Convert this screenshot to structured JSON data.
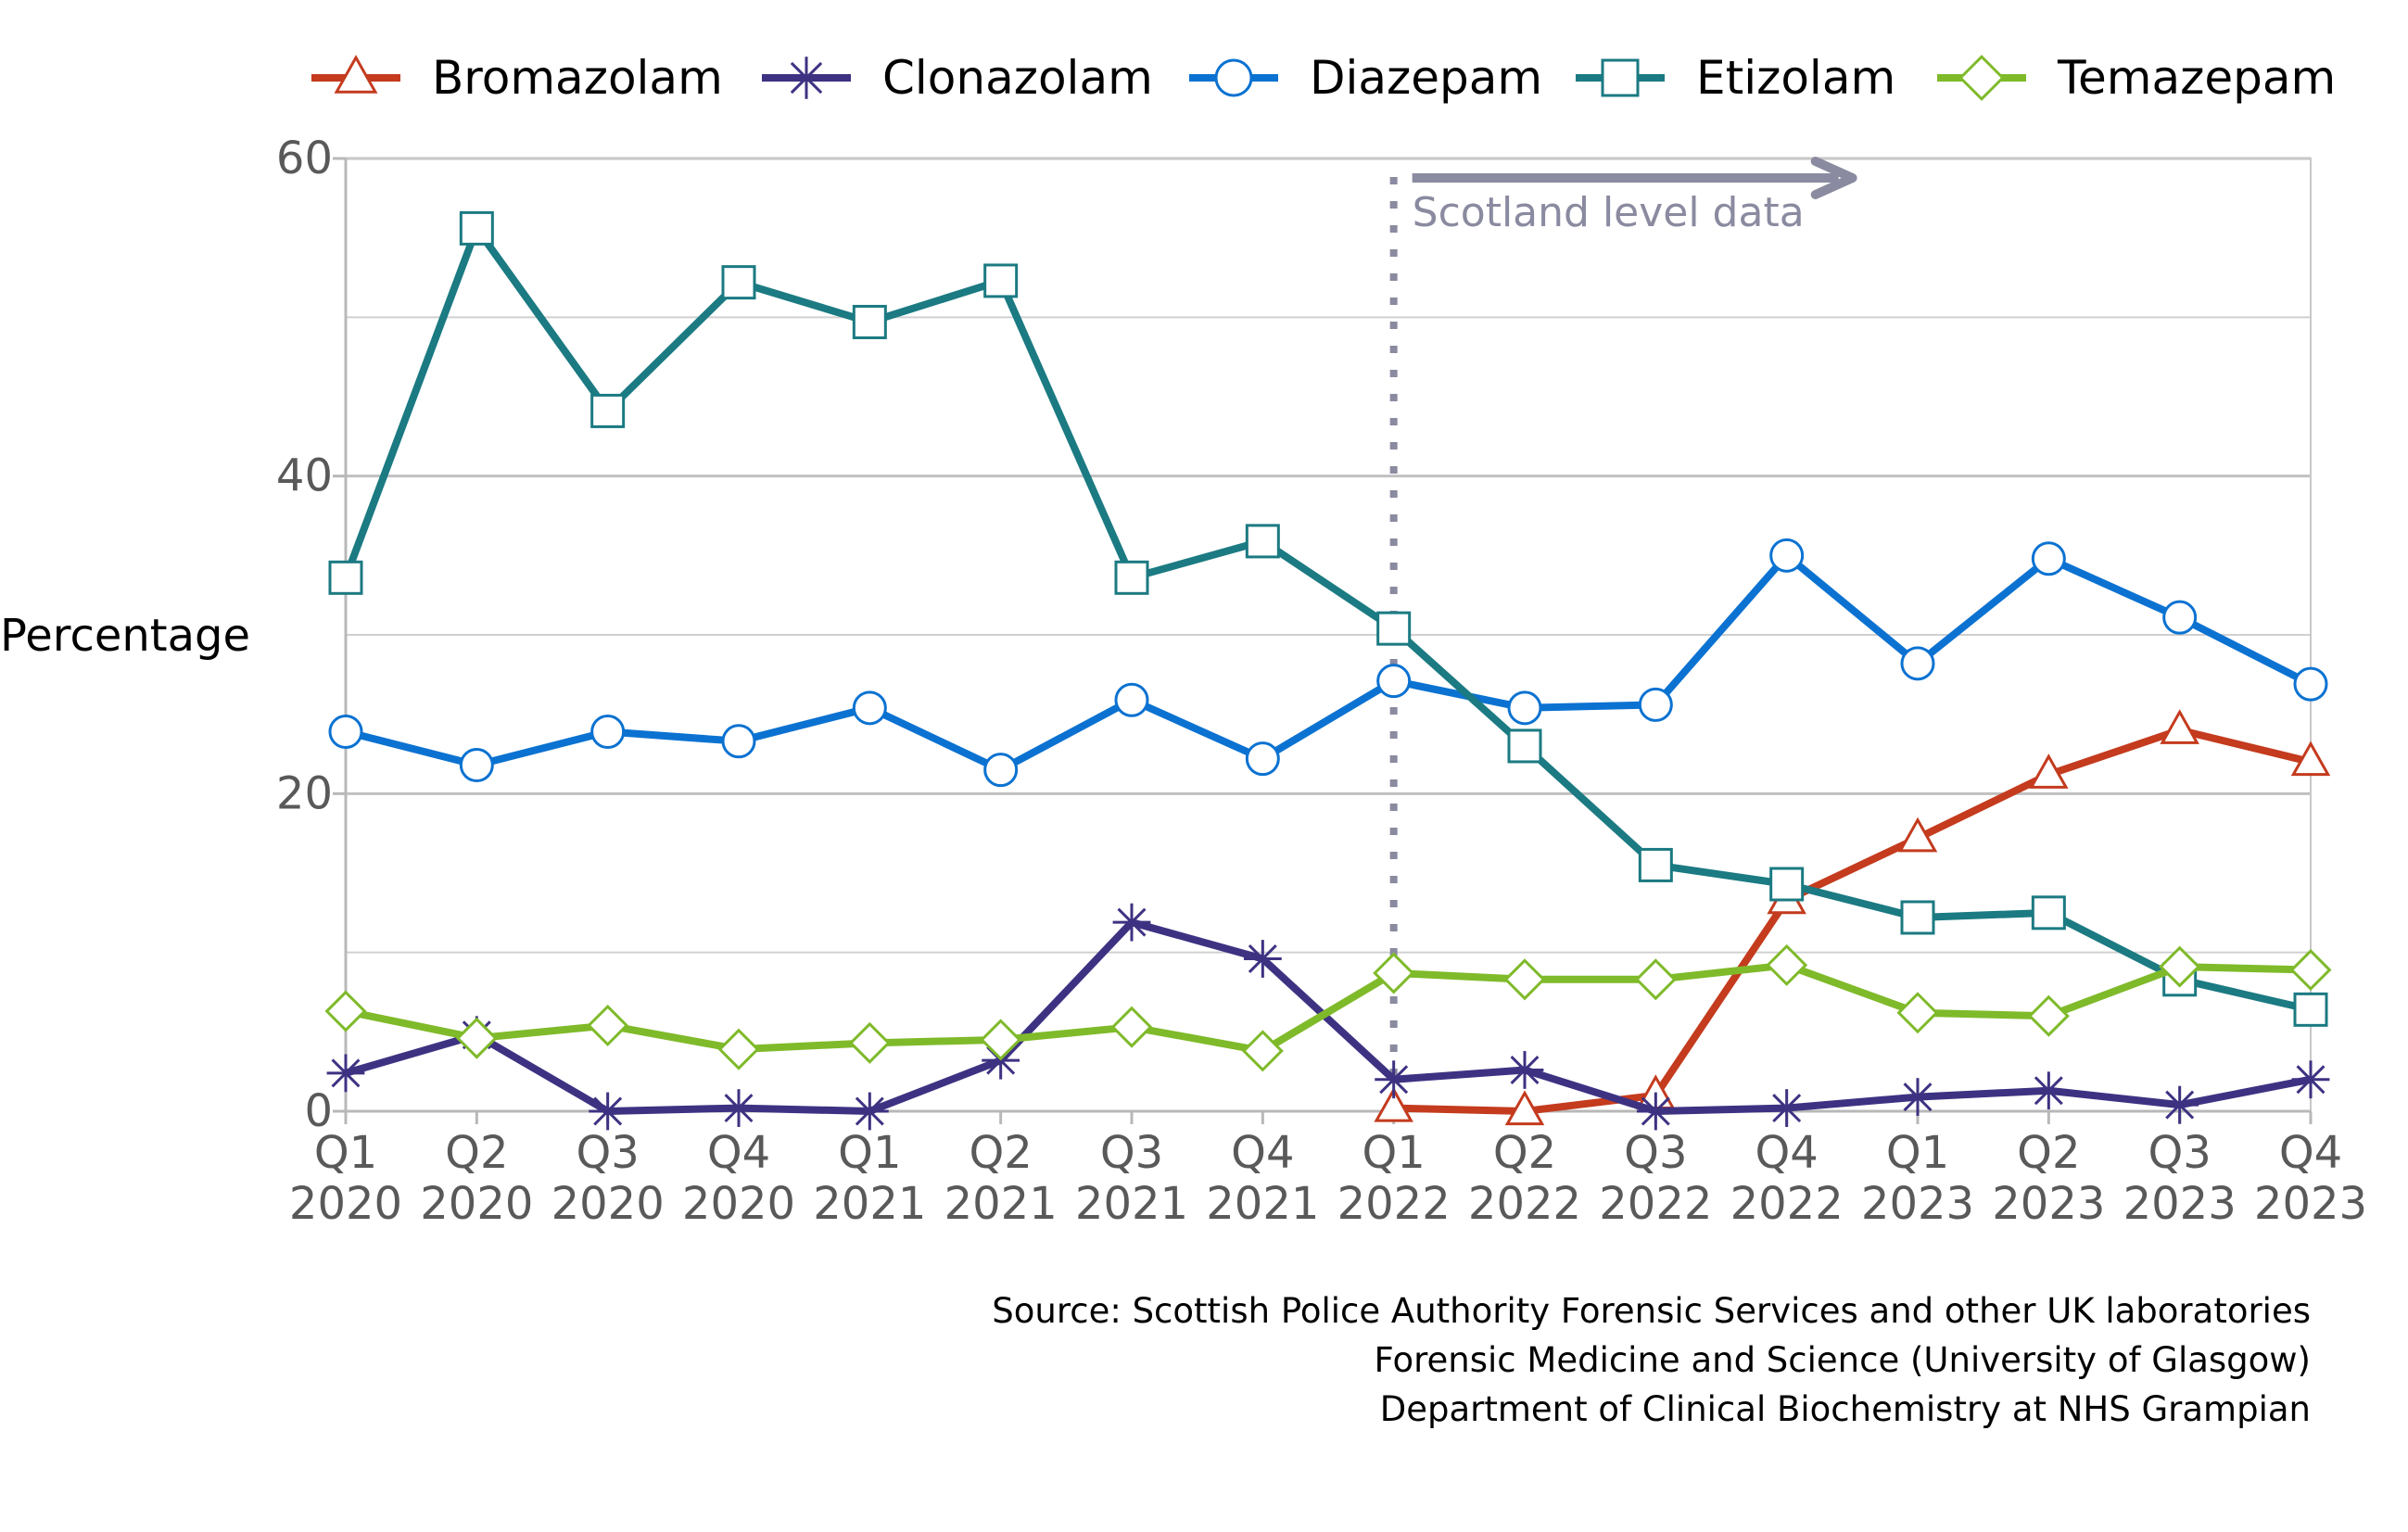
{
  "chart_data": {
    "type": "line",
    "title": "",
    "xlabel": "",
    "ylabel": "Percentage",
    "ylim": [
      0,
      60
    ],
    "yticks": [
      0,
      20,
      40,
      60
    ],
    "ygrid_minor": [
      10,
      30,
      50
    ],
    "grid": true,
    "legend_position": "top",
    "categories": [
      [
        "Q1",
        "2020"
      ],
      [
        "Q2",
        "2020"
      ],
      [
        "Q3",
        "2020"
      ],
      [
        "Q4",
        "2020"
      ],
      [
        "Q1",
        "2021"
      ],
      [
        "Q2",
        "2021"
      ],
      [
        "Q3",
        "2021"
      ],
      [
        "Q4",
        "2021"
      ],
      [
        "Q1",
        "2022"
      ],
      [
        "Q2",
        "2022"
      ],
      [
        "Q3",
        "2022"
      ],
      [
        "Q4",
        "2022"
      ],
      [
        "Q1",
        "2023"
      ],
      [
        "Q2",
        "2023"
      ],
      [
        "Q3",
        "2023"
      ],
      [
        "Q4",
        "2023"
      ]
    ],
    "series": [
      {
        "name": "Bromazolam",
        "color": "#c43b1e",
        "marker": "triangle",
        "values": [
          null,
          null,
          null,
          null,
          null,
          null,
          null,
          null,
          0.2,
          0.0,
          1.0,
          13.3,
          17.2,
          21.2,
          24.0,
          22.0
        ]
      },
      {
        "name": "Clonazolam",
        "color": "#3d3282",
        "marker": "asterisk",
        "values": [
          2.4,
          4.8,
          0.0,
          0.2,
          0.0,
          3.2,
          11.9,
          9.6,
          2.0,
          2.6,
          0.0,
          0.2,
          0.9,
          1.3,
          0.4,
          2.0
        ]
      },
      {
        "name": "Diazepam",
        "color": "#0b72d1",
        "marker": "circle",
        "values": [
          23.9,
          21.8,
          23.9,
          23.3,
          25.4,
          21.5,
          25.9,
          22.2,
          27.1,
          25.4,
          25.6,
          35.0,
          28.2,
          34.8,
          31.1,
          26.9
        ]
      },
      {
        "name": "Etizolam",
        "color": "#1b7a82",
        "marker": "square",
        "values": [
          33.6,
          55.6,
          44.1,
          52.2,
          49.7,
          52.3,
          33.6,
          35.9,
          30.4,
          23.0,
          15.5,
          14.3,
          12.2,
          12.5,
          8.3,
          6.4
        ]
      },
      {
        "name": "Temazepam",
        "color": "#7fba2a",
        "marker": "diamond",
        "values": [
          6.3,
          4.6,
          5.4,
          3.9,
          4.3,
          4.5,
          5.3,
          3.8,
          8.7,
          8.3,
          8.3,
          9.2,
          6.2,
          6.0,
          9.1,
          8.9
        ]
      }
    ],
    "annotation": {
      "text": "Scotland level data",
      "at_category_index": 8,
      "color": "#8a8aa0"
    },
    "source_lines": [
      "Source: Scottish Police Authority Forensic Services and other UK laboratories",
      "Forensic Medicine and Science (University of Glasgow)",
      "Department of Clinical Biochemistry at NHS Grampian"
    ]
  }
}
